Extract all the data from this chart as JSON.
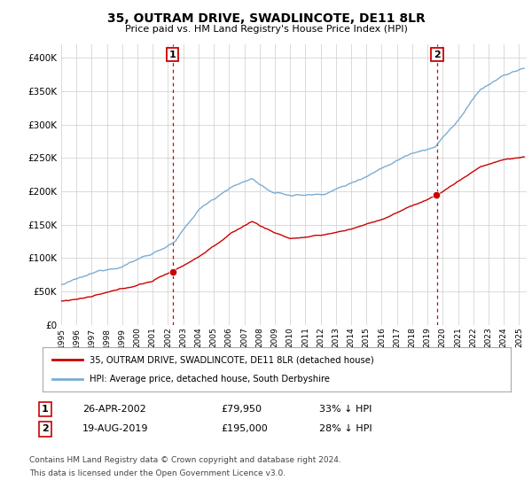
{
  "title": "35, OUTRAM DRIVE, SWADLINCOTE, DE11 8LR",
  "subtitle": "Price paid vs. HM Land Registry's House Price Index (HPI)",
  "sale1": {
    "date": "2002-04-26",
    "price": 79950,
    "label": "1",
    "pct": "33% ↓ HPI",
    "date_str": "26-APR-2002"
  },
  "sale2": {
    "date": "2019-08-19",
    "price": 195000,
    "label": "2",
    "pct": "28% ↓ HPI",
    "date_str": "19-AUG-2019"
  },
  "legend_line1": "35, OUTRAM DRIVE, SWADLINCOTE, DE11 8LR (detached house)",
  "legend_line2": "HPI: Average price, detached house, South Derbyshire",
  "footer1": "Contains HM Land Registry data © Crown copyright and database right 2024.",
  "footer2": "This data is licensed under the Open Government Licence v3.0.",
  "hpi_color": "#7aadd4",
  "sale_color": "#cc0000",
  "vline_color": "#cc0000",
  "bg_color": "#ffffff",
  "grid_color": "#cccccc",
  "ylim": [
    0,
    420000
  ],
  "yticks": [
    0,
    50000,
    100000,
    150000,
    200000,
    250000,
    300000,
    350000,
    400000
  ],
  "xstart": 1995,
  "xend": 2025
}
